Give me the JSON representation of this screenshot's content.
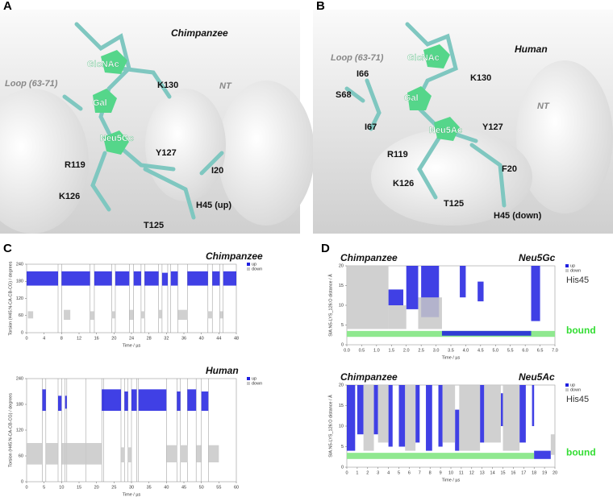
{
  "panels": [
    {
      "letter": "A",
      "species": "Chimpanzee",
      "labels": [
        "GlcNAc",
        "Gal",
        "Neu5Gc",
        "K130",
        "Loop (63-71)",
        "NT",
        "R119",
        "Y127",
        "I20",
        "K126",
        "H45 (up)",
        "T125"
      ]
    },
    {
      "letter": "B",
      "species": "Human",
      "labels": [
        "Loop (63-71)",
        "GlcNAc",
        "I66",
        "K130",
        "S68",
        "Gal",
        "NT",
        "I67",
        "Neu5Ac",
        "Y127",
        "R119",
        "F20",
        "K126",
        "T125",
        "H45 (down)"
      ]
    }
  ],
  "chart_letters": [
    "C",
    "D"
  ],
  "chart_data": [
    {
      "type": "strip",
      "title": "Chimpanzee",
      "xlabel": "Time / µs",
      "ylabel": "Torsion (H45:N-CA-CB-CG) / degrees",
      "xlim": [
        0,
        48
      ],
      "xticks": [
        0,
        4,
        8,
        12,
        16,
        20,
        24,
        28,
        32,
        36,
        40,
        44,
        48
      ],
      "ylim": [
        0,
        240
      ],
      "yticks": [
        0,
        60,
        120,
        180,
        240
      ],
      "transitions": [
        7.2,
        8,
        14.5,
        15.5,
        19.5,
        20.3,
        23.5,
        24.5,
        26.2,
        27,
        30.2,
        31,
        32.3,
        33,
        34.6,
        36.8,
        41.5,
        42.5,
        44.2,
        45
      ],
      "series": [
        {
          "name": "up",
          "color": "#1f1fe0",
          "bands": [
            [
              0,
              7.2,
              165,
              215
            ],
            [
              8,
              14.5,
              165,
              215
            ],
            [
              15.5,
              19.5,
              165,
              215
            ],
            [
              20.3,
              23.5,
              165,
              215
            ],
            [
              24.5,
              26.2,
              165,
              215
            ],
            [
              27,
              30.2,
              165,
              215
            ],
            [
              31,
              32.3,
              165,
              210
            ],
            [
              33,
              34.6,
              165,
              215
            ],
            [
              36.8,
              41.5,
              165,
              215
            ],
            [
              42.5,
              44.2,
              165,
              215
            ],
            [
              45,
              48,
              165,
              215
            ]
          ]
        },
        {
          "name": "down",
          "color": "#c8c8c8",
          "bands": [
            [
              0.3,
              1.5,
              50,
              75
            ],
            [
              8.5,
              10,
              45,
              80
            ],
            [
              14.5,
              15.5,
              45,
              75
            ],
            [
              19.5,
              20.3,
              50,
              75
            ],
            [
              23.5,
              24.5,
              45,
              80
            ],
            [
              26.2,
              27,
              50,
              75
            ],
            [
              30.2,
              31,
              50,
              80
            ],
            [
              34.6,
              36.8,
              45,
              80
            ],
            [
              41.5,
              42.5,
              50,
              75
            ],
            [
              44.2,
              45,
              50,
              75
            ]
          ]
        }
      ]
    },
    {
      "type": "strip",
      "title": "Human",
      "xlabel": "Time / µs",
      "ylabel": "Torsion (H45:N-CA-CB-CG) / degrees",
      "xlim": [
        0,
        60
      ],
      "xticks": [
        0,
        5,
        10,
        15,
        20,
        25,
        30,
        35,
        40,
        45,
        50,
        55,
        60
      ],
      "ylim": [
        0,
        240
      ],
      "yticks": [
        0,
        60,
        120,
        180,
        240
      ],
      "transitions": [
        4.5,
        5.5,
        9,
        10,
        11,
        11.5,
        17,
        21.5,
        22,
        27,
        28,
        29,
        30,
        31.5,
        32,
        40,
        43,
        44,
        46,
        48.5,
        50,
        52
      ],
      "series": [
        {
          "name": "up",
          "color": "#1f1fe0",
          "bands": [
            [
              4.5,
              5.5,
              165,
              215
            ],
            [
              9,
              10,
              165,
              200
            ],
            [
              11,
              11.5,
              170,
              200
            ],
            [
              21.5,
              27,
              165,
              215
            ],
            [
              28,
              29,
              165,
              210
            ],
            [
              30,
              31.5,
              165,
              215
            ],
            [
              32,
              40,
              165,
              215
            ],
            [
              43,
              44,
              165,
              210
            ],
            [
              46,
              48.5,
              165,
              215
            ],
            [
              50,
              52,
              165,
              210
            ]
          ]
        },
        {
          "name": "down",
          "color": "#c8c8c8",
          "bands": [
            [
              0,
              4.5,
              40,
              90
            ],
            [
              5.5,
              9,
              40,
              90
            ],
            [
              10,
              21.5,
              40,
              90
            ],
            [
              27,
              28,
              45,
              80
            ],
            [
              29,
              30,
              45,
              80
            ],
            [
              40,
              43,
              45,
              85
            ],
            [
              44,
              46,
              45,
              85
            ],
            [
              48.5,
              50,
              45,
              85
            ],
            [
              52,
              55,
              45,
              85
            ]
          ]
        }
      ]
    },
    {
      "type": "strip",
      "title": "Chimpanzee",
      "annotation": "Neu5Gc",
      "note": "His45",
      "band_label": "bound",
      "xlabel": "Time / µs",
      "ylabel": "SIA:N5-LYS_126:O distance / Å",
      "xlim": [
        0,
        7
      ],
      "xticks": [
        {
          "value": 0,
          "label": "0.0"
        },
        0.5,
        {
          "value": 1,
          "label": "1.0"
        },
        1.5,
        {
          "value": 2,
          "label": "2.0"
        },
        2.5,
        {
          "value": 3,
          "label": "3.0"
        },
        3.5,
        {
          "value": 4,
          "label": "4.0"
        },
        4.5,
        {
          "value": 5,
          "label": "5.0"
        },
        5.5,
        {
          "value": 6,
          "label": "6.0"
        },
        6.5,
        {
          "value": 7,
          "label": "7.0"
        }
      ],
      "ylim": [
        0,
        20
      ],
      "yticks": [
        0,
        5,
        10,
        15,
        20
      ],
      "bound": {
        "color": "#8fe88f",
        "x": [
          0,
          7
        ],
        "y": [
          2,
          3.5
        ]
      },
      "series": [
        {
          "name": "up",
          "color": "#1f1fe0",
          "bands": [
            [
              1.4,
              1.9,
              10,
              14
            ],
            [
              2.0,
              2.4,
              9,
              20
            ],
            [
              2.5,
              3.1,
              7,
              20
            ],
            [
              3.2,
              6.2,
              2.3,
              3.5
            ],
            [
              3.8,
              4.0,
              12,
              20
            ],
            [
              4.4,
              4.6,
              11,
              16
            ],
            [
              6.2,
              6.5,
              6,
              20
            ]
          ]
        },
        {
          "name": "down",
          "color": "#c8c8c8",
          "bands": [
            [
              0,
              1.4,
              4,
              20
            ],
            [
              1.4,
              2.0,
              4,
              10
            ],
            [
              2.4,
              3.2,
              4,
              12
            ]
          ]
        }
      ]
    },
    {
      "type": "strip",
      "title": "Chimpanzee",
      "annotation": "Neu5Ac",
      "note": "His45",
      "band_label": "bound",
      "xlabel": "Time / µs",
      "ylabel": "SIA:N5-LYS_126:O distance / Å",
      "xlim": [
        0,
        20
      ],
      "xticks": [
        0,
        1,
        2,
        3,
        4,
        5,
        6,
        7,
        8,
        9,
        10,
        11,
        12,
        13,
        14,
        15,
        16,
        17,
        18,
        19,
        20
      ],
      "ylim": [
        0,
        20
      ],
      "yticks": [
        0,
        5,
        10,
        15,
        20
      ],
      "bound": {
        "color": "#8fe88f",
        "x": [
          0,
          18
        ],
        "y": [
          2,
          3.5
        ]
      },
      "series": [
        {
          "name": "up",
          "color": "#1f1fe0",
          "bands": [
            [
              0,
              0.8,
              4,
              20
            ],
            [
              1,
              1.6,
              8,
              20
            ],
            [
              2.6,
              3,
              8,
              20
            ],
            [
              4,
              4.4,
              5,
              20
            ],
            [
              5,
              5.6,
              5,
              20
            ],
            [
              6.6,
              7,
              6,
              20
            ],
            [
              7.6,
              8.2,
              4,
              20
            ],
            [
              8.8,
              9.2,
              5,
              20
            ],
            [
              10.4,
              10.8,
              4,
              14
            ],
            [
              12.8,
              13.2,
              6,
              20
            ],
            [
              14.8,
              15,
              10,
              18
            ],
            [
              16.6,
              17.2,
              6,
              20
            ],
            [
              17.8,
              18,
              10,
              20
            ],
            [
              18,
              19.6,
              2,
              4
            ]
          ]
        },
        {
          "name": "down",
          "color": "#c8c8c8",
          "bands": [
            [
              1.6,
              2.6,
              4,
              20
            ],
            [
              3,
              4,
              6,
              20
            ],
            [
              5.6,
              6.6,
              4,
              20
            ],
            [
              9.2,
              10.4,
              6,
              20
            ],
            [
              10.8,
              12.8,
              4,
              20
            ],
            [
              13.2,
              14.8,
              6,
              20
            ],
            [
              15,
              16.6,
              4,
              20
            ],
            [
              19.6,
              20,
              3,
              8
            ]
          ]
        }
      ]
    }
  ]
}
